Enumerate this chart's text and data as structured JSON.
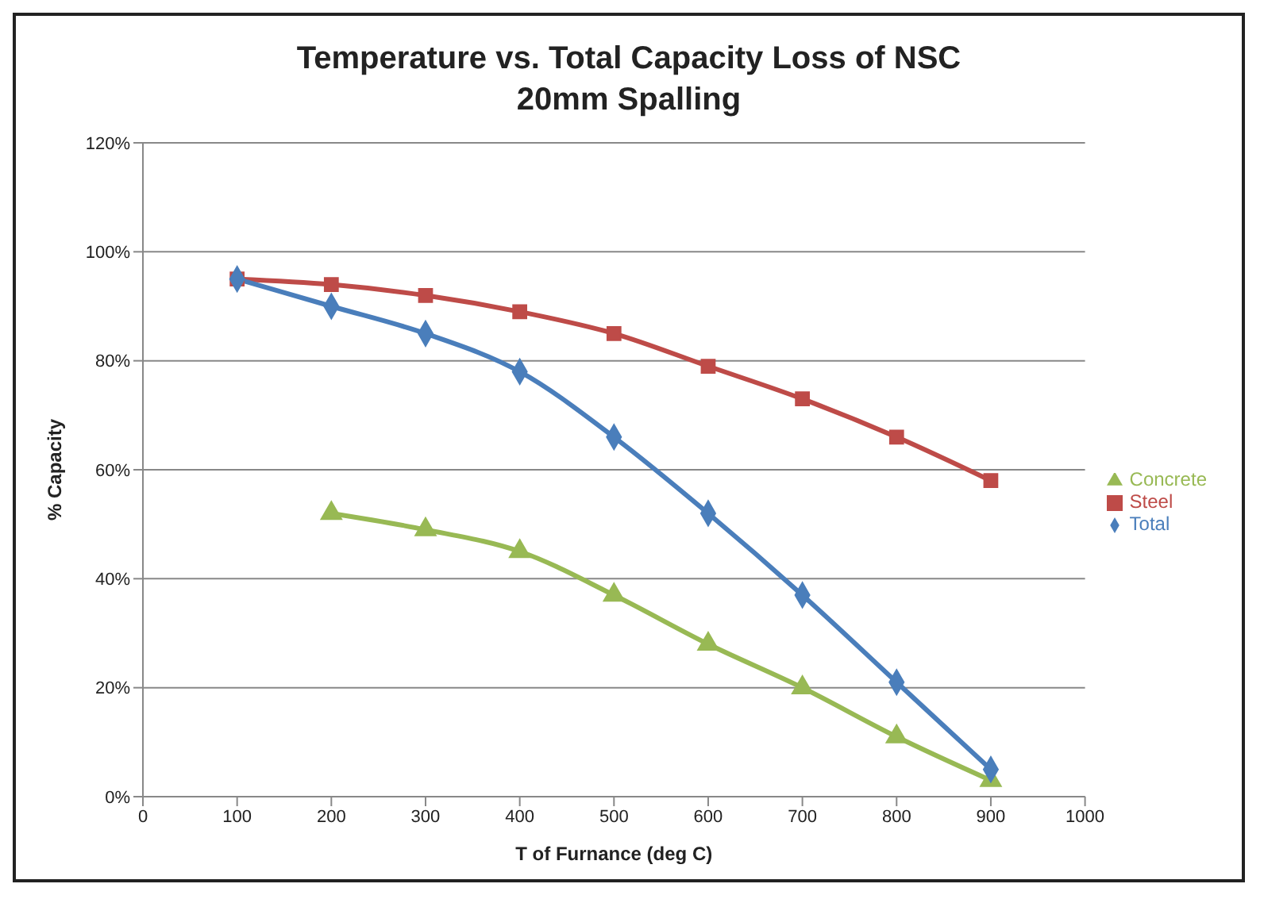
{
  "chart_data": {
    "type": "line",
    "title": "Temperature vs. Total Capacity Loss of NSC",
    "subtitle": "20mm Spalling",
    "xlabel": "T of Furnance (deg C)",
    "ylabel": "% Capacity",
    "x": [
      100,
      200,
      300,
      400,
      500,
      600,
      700,
      800,
      900
    ],
    "series": [
      {
        "name": "Total",
        "color": "#4a7ebb",
        "marker": "diamond",
        "values": [
          95,
          90,
          85,
          78,
          66,
          52,
          37,
          21,
          5
        ]
      },
      {
        "name": "Steel",
        "color": "#be4b48",
        "marker": "square",
        "values": [
          95,
          94,
          92,
          89,
          85,
          79,
          73,
          66,
          58
        ]
      },
      {
        "name": "Concrete",
        "color": "#98b954",
        "marker": "triangle",
        "values": [
          null,
          52,
          49,
          45,
          37,
          28,
          20,
          11,
          3
        ]
      }
    ],
    "xlim": [
      0,
      1000
    ],
    "xticks": [
      0,
      100,
      200,
      300,
      400,
      500,
      600,
      700,
      800,
      900,
      1000
    ],
    "ylim": [
      0,
      120
    ],
    "yticks": [
      {
        "value": 0,
        "label": "0%"
      },
      {
        "value": 20,
        "label": "20%"
      },
      {
        "value": 40,
        "label": "40%"
      },
      {
        "value": 60,
        "label": "60%"
      },
      {
        "value": 80,
        "label": "80%"
      },
      {
        "value": 100,
        "label": "100%"
      },
      {
        "value": 120,
        "label": "120%"
      }
    ],
    "grid": "y",
    "legend": "right",
    "line_style": "solid"
  }
}
